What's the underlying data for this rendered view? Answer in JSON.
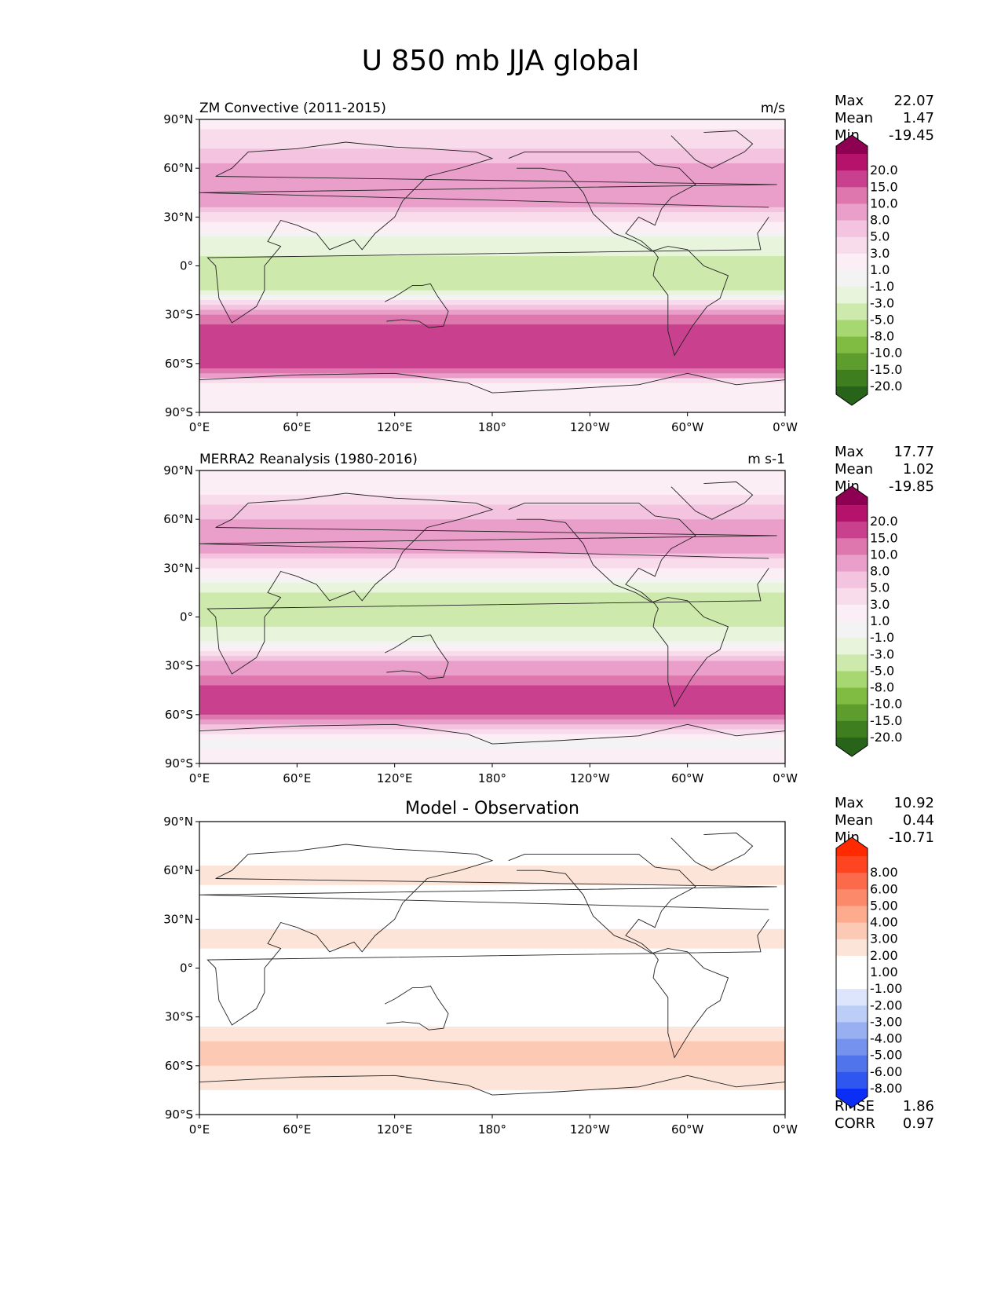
{
  "title": "U 850 mb JJA global",
  "chart_data": [
    {
      "type": "heatmap",
      "panel": "model",
      "left_title": "ZM Convective (2011-2015)",
      "center_title": "",
      "right_title": "m/s",
      "x_ticks": [
        "0°E",
        "60°E",
        "120°E",
        "180°",
        "120°W",
        "60°W",
        "0°W"
      ],
      "y_ticks": [
        "90°N",
        "60°N",
        "30°N",
        "0°",
        "30°S",
        "60°S",
        "90°S"
      ],
      "stats": [
        {
          "label": "Max",
          "value": "22.07"
        },
        {
          "label": "Mean",
          "value": "1.47"
        },
        {
          "label": "Min",
          "value": "-19.45"
        }
      ],
      "colorbar_levels": [
        "20.0",
        "15.0",
        "10.0",
        "8.0",
        "5.0",
        "3.0",
        "1.0",
        "-1.0",
        "-3.0",
        "-5.0",
        "-8.0",
        "-10.0",
        "-15.0",
        "-20.0"
      ],
      "colorbar_colors": [
        "#8e0152",
        "#b5136b",
        "#c9408e",
        "#de77ae",
        "#ea9fcb",
        "#f3c3df",
        "#f8dcec",
        "#fbeef5",
        "#f3f3f3",
        "#e9f4dc",
        "#cde9ac",
        "#a7d770",
        "#7fbc41",
        "#5d9d2e",
        "#3e7e1f",
        "#276419"
      ],
      "zonal_profile_lat": [
        90,
        75,
        60,
        45,
        30,
        15,
        0,
        -15,
        -30,
        -45,
        -60,
        -75,
        -90
      ],
      "zonal_profile_u": [
        0,
        2,
        6,
        8,
        2,
        -4,
        -6,
        -5,
        8,
        12,
        12,
        -1,
        0
      ]
    },
    {
      "type": "heatmap",
      "panel": "observation",
      "left_title": "MERRA2 Reanalysis (1980-2016)",
      "center_title": "",
      "right_title": "m s-1",
      "x_ticks": [
        "0°E",
        "60°E",
        "120°E",
        "180°",
        "120°W",
        "60°W",
        "0°W"
      ],
      "y_ticks": [
        "90°N",
        "60°N",
        "30°N",
        "0°",
        "30°S",
        "60°S",
        "90°S"
      ],
      "stats": [
        {
          "label": "Max",
          "value": "17.77"
        },
        {
          "label": "Mean",
          "value": "1.02"
        },
        {
          "label": "Min",
          "value": "-19.85"
        }
      ],
      "colorbar_levels": [
        "20.0",
        "15.0",
        "10.0",
        "8.0",
        "5.0",
        "3.0",
        "1.0",
        "-1.0",
        "-3.0",
        "-5.0",
        "-8.0",
        "-10.0",
        "-15.0",
        "-20.0"
      ],
      "colorbar_colors": [
        "#8e0152",
        "#b5136b",
        "#c9408e",
        "#de77ae",
        "#ea9fcb",
        "#f3c3df",
        "#f8dcec",
        "#fbeef5",
        "#f3f3f3",
        "#e9f4dc",
        "#cde9ac",
        "#a7d770",
        "#7fbc41",
        "#5d9d2e",
        "#3e7e1f",
        "#276419"
      ],
      "zonal_profile_lat": [
        90,
        75,
        60,
        45,
        30,
        15,
        0,
        -15,
        -30,
        -45,
        -60,
        -75,
        -90
      ],
      "zonal_profile_u": [
        0,
        1,
        5,
        7,
        1,
        -5,
        -6,
        -4,
        6,
        11,
        11,
        -2,
        0
      ]
    },
    {
      "type": "heatmap",
      "panel": "difference",
      "left_title": "",
      "center_title": "Model - Observation",
      "right_title": "",
      "x_ticks": [
        "0°E",
        "60°E",
        "120°E",
        "180°",
        "120°W",
        "60°W",
        "0°W"
      ],
      "y_ticks": [
        "90°N",
        "60°N",
        "30°N",
        "0°",
        "30°S",
        "60°S",
        "90°S"
      ],
      "stats": [
        {
          "label": "Max",
          "value": "10.92"
        },
        {
          "label": "Mean",
          "value": "0.44"
        },
        {
          "label": "Min",
          "value": "-10.71"
        }
      ],
      "colorbar_levels": [
        "8.00",
        "6.00",
        "5.00",
        "4.00",
        "3.00",
        "2.00",
        "1.00",
        "-1.00",
        "-2.00",
        "-3.00",
        "-4.00",
        "-5.00",
        "-6.00",
        "-8.00"
      ],
      "colorbar_colors": [
        "#ff2a00",
        "#ff4422",
        "#fb6a4a",
        "#fc8a6a",
        "#fcab8f",
        "#fcc9b4",
        "#fde4d8",
        "#ffffff",
        "#ffffff",
        "#dce5fb",
        "#bccdf7",
        "#98b0f2",
        "#7492ee",
        "#4f74eb",
        "#2f57ef",
        "#0a2ef5"
      ],
      "extra_stats": [
        {
          "label": "RMSE",
          "value": "1.86"
        },
        {
          "label": "CORR",
          "value": "0.97"
        }
      ],
      "zonal_profile_lat": [
        90,
        75,
        60,
        45,
        30,
        15,
        0,
        -15,
        -30,
        -45,
        -60,
        -75,
        -90
      ],
      "zonal_profile_u": [
        -1,
        -0.5,
        1.5,
        0.5,
        0.5,
        2,
        -1.5,
        -0.5,
        0.5,
        2,
        2,
        1,
        0
      ]
    }
  ]
}
